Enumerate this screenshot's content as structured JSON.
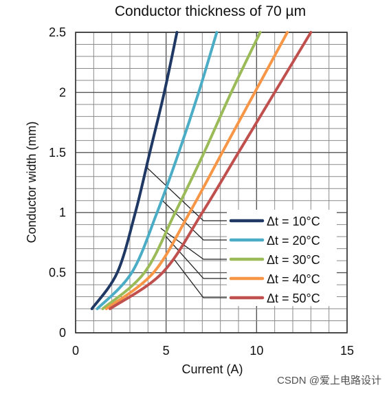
{
  "chart_data": {
    "type": "line",
    "title": "Conductor thickness of 70 µm",
    "xlabel": "Current  (A)",
    "ylabel": "Conductor width (mm)",
    "xlim": [
      0,
      15
    ],
    "ylim": [
      0,
      2.5
    ],
    "x_ticks": [
      0,
      5,
      10,
      15
    ],
    "x_tick_labels": [
      "0",
      "5",
      "10",
      "15"
    ],
    "y_ticks": [
      0,
      0.5,
      1,
      1.5,
      2,
      2.5
    ],
    "y_tick_labels": [
      "0",
      "0.5",
      "1",
      "1.5",
      "2",
      "2.5"
    ],
    "grid": true,
    "legend_position": "bottom-right",
    "series": [
      {
        "name": "Δt = 10°C",
        "color": "#1f3864",
        "points": [
          [
            0.9,
            0.2
          ],
          [
            2.3,
            0.5
          ],
          [
            3.3,
            1.0
          ],
          [
            4.1,
            1.5
          ],
          [
            4.9,
            2.0
          ],
          [
            5.6,
            2.5
          ]
        ]
      },
      {
        "name": "Δt = 20°C",
        "color": "#4bacc6",
        "points": [
          [
            1.2,
            0.2
          ],
          [
            3.1,
            0.5
          ],
          [
            4.5,
            1.0
          ],
          [
            5.7,
            1.5
          ],
          [
            6.8,
            2.0
          ],
          [
            7.8,
            2.5
          ]
        ]
      },
      {
        "name": "Δt = 30°C",
        "color": "#9bbb59",
        "points": [
          [
            1.5,
            0.2
          ],
          [
            3.8,
            0.5
          ],
          [
            5.5,
            1.0
          ],
          [
            7.1,
            1.5
          ],
          [
            8.6,
            2.0
          ],
          [
            10.2,
            2.5
          ]
        ]
      },
      {
        "name": "Δt = 40°C",
        "color": "#f79646",
        "points": [
          [
            1.7,
            0.2
          ],
          [
            4.3,
            0.5
          ],
          [
            6.3,
            1.0
          ],
          [
            8.1,
            1.5
          ],
          [
            9.9,
            2.0
          ],
          [
            11.7,
            2.5
          ]
        ]
      },
      {
        "name": "Δt = 50°C",
        "color": "#c0504d",
        "points": [
          [
            1.9,
            0.2
          ],
          [
            4.8,
            0.5
          ],
          [
            7.0,
            1.0
          ],
          [
            9.0,
            1.5
          ],
          [
            11.0,
            2.0
          ],
          [
            13.0,
            2.5
          ]
        ]
      }
    ],
    "callout_anchors": [
      [
        3.9,
        1.38
      ],
      [
        4.8,
        1.1
      ],
      [
        4.7,
        0.87
      ],
      [
        5.0,
        0.8
      ],
      [
        5.4,
        0.62
      ]
    ]
  },
  "watermark": "CSDN @爱上电路设计"
}
